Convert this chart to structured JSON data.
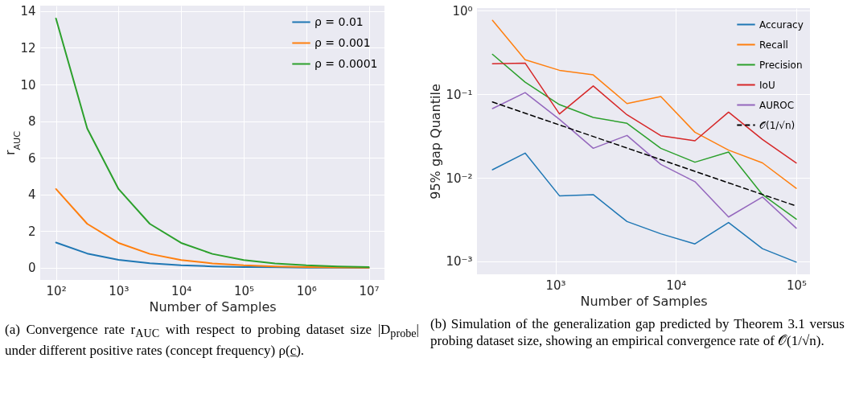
{
  "chart_data": [
    {
      "type": "line",
      "xlabel": "Number of Samples",
      "ylabel": "r$_{AUC}$",
      "log": "x",
      "grid": true,
      "legend": "top right",
      "x": [
        100,
        316,
        1000,
        3162,
        10000,
        31623,
        100000,
        316228,
        1000000,
        3162278,
        10000000
      ],
      "xlim": [
        56,
        17800000
      ],
      "ylim": [
        -0.66,
        14.3
      ],
      "xticks": [
        {
          "value": 100,
          "label": "10²"
        },
        {
          "value": 1000,
          "label": "10³"
        },
        {
          "value": 10000,
          "label": "10⁴"
        },
        {
          "value": 100000,
          "label": "10⁵"
        },
        {
          "value": 1000000,
          "label": "10⁶"
        },
        {
          "value": 10000000,
          "label": "10⁷"
        }
      ],
      "yticks": [
        0,
        2,
        4,
        6,
        8,
        10,
        12,
        14
      ],
      "series": [
        {
          "name": "ρ = 0.01",
          "color": "#1f77b4",
          "values": [
            1.38,
            0.78,
            0.44,
            0.25,
            0.14,
            0.08,
            0.04,
            0.03,
            0.01,
            0.01,
            0.0
          ]
        },
        {
          "name": "ρ = 0.001",
          "color": "#ff7f0e",
          "values": [
            4.3,
            2.4,
            1.36,
            0.76,
            0.43,
            0.24,
            0.14,
            0.08,
            0.04,
            0.02,
            0.01
          ]
        },
        {
          "name": "ρ = 0.0001",
          "color": "#2ca02c",
          "values": [
            13.6,
            7.6,
            4.3,
            2.4,
            1.36,
            0.76,
            0.43,
            0.24,
            0.14,
            0.08,
            0.04
          ]
        }
      ],
      "annotations": [
        "(a) Convergence rate r$_{AUC}$ with respect to probing dataset size |D$_{probe}$| under different positive rates (concept frequency) ρ(c̲)."
      ]
    },
    {
      "type": "line",
      "xlabel": "Number of Samples",
      "ylabel": "95% gap Quantile",
      "log": "xy",
      "grid": true,
      "legend": "top right",
      "x": [
        300,
        560,
        1080,
        2060,
        3930,
        7500,
        14400,
        27400,
        52400,
        100000
      ],
      "xlim": [
        223,
        130000
      ],
      "ylim": [
        0.0007,
        1.08
      ],
      "xticks": [
        {
          "value": 1000,
          "label": "10³"
        },
        {
          "value": 10000,
          "label": "10⁴"
        },
        {
          "value": 100000,
          "label": "10⁵"
        }
      ],
      "yticks": [
        {
          "value": 0.001,
          "label": "10⁻³"
        },
        {
          "value": 0.01,
          "label": "10⁻²"
        },
        {
          "value": 0.1,
          "label": "10⁻¹"
        },
        {
          "value": 1,
          "label": "10⁰"
        }
      ],
      "series": [
        {
          "name": "Accuracy",
          "color": "#1f77b4",
          "values": [
            0.0125,
            0.0198,
            0.0061,
            0.0063,
            0.003,
            0.00214,
            0.00162,
            0.00292,
            0.00142,
            0.00098
          ]
        },
        {
          "name": "Recall",
          "color": "#ff7f0e",
          "values": [
            0.77,
            0.26,
            0.194,
            0.171,
            0.0776,
            0.094,
            0.0352,
            0.0215,
            0.0151,
            0.0075
          ]
        },
        {
          "name": "Precision",
          "color": "#2ca02c",
          "values": [
            0.302,
            0.14,
            0.0754,
            0.0529,
            0.045,
            0.0226,
            0.0154,
            0.0204,
            0.0063,
            0.0032
          ]
        },
        {
          "name": "IoU",
          "color": "#d62728",
          "values": [
            0.233,
            0.237,
            0.0582,
            0.126,
            0.0569,
            0.032,
            0.0278,
            0.0612,
            0.0288,
            0.0151
          ]
        },
        {
          "name": "AUROC",
          "color": "#9467bd",
          "values": [
            0.0675,
            0.105,
            0.0502,
            0.0226,
            0.0322,
            0.0145,
            0.009,
            0.0034,
            0.0059,
            0.0025
          ]
        },
        {
          "name": "𝒪(1/√n)",
          "color": "#000000",
          "line_style": "dashed",
          "x": [
            300,
            100000
          ],
          "values": [
            0.081,
            0.0046
          ]
        }
      ],
      "annotations": [
        "(b) Simulation of the generalization gap predicted by Theorem 3.1 versus probing dataset size, showing an empirical convergence rate of 𝒪(1/√n)."
      ]
    }
  ]
}
